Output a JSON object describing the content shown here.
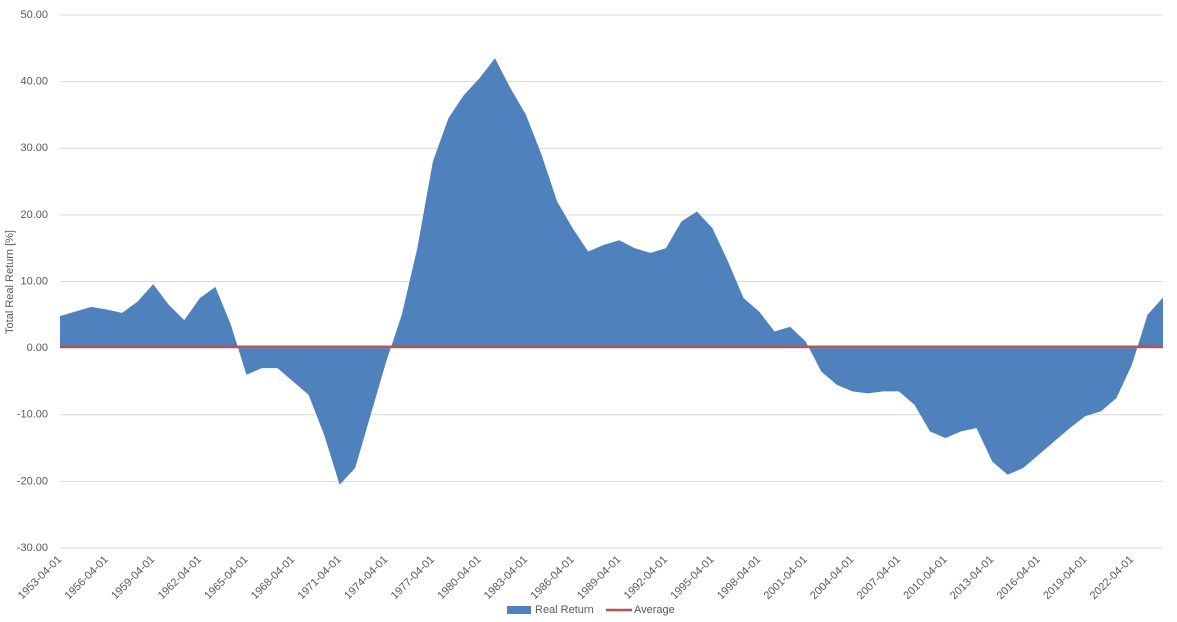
{
  "chart_data": {
    "type": "area",
    "y_label": "Total Real Return [%]",
    "x": [
      "1953-04-01",
      "1954-04-01",
      "1955-04-01",
      "1956-04-01",
      "1957-04-01",
      "1958-04-01",
      "1959-04-01",
      "1960-04-01",
      "1961-04-01",
      "1962-04-01",
      "1963-04-01",
      "1964-04-01",
      "1965-04-01",
      "1966-04-01",
      "1967-04-01",
      "1968-04-01",
      "1969-04-01",
      "1970-04-01",
      "1971-04-01",
      "1972-04-01",
      "1973-04-01",
      "1974-04-01",
      "1975-04-01",
      "1976-04-01",
      "1977-04-01",
      "1978-04-01",
      "1979-04-01",
      "1980-04-01",
      "1981-04-01",
      "1982-04-01",
      "1983-04-01",
      "1984-04-01",
      "1985-04-01",
      "1986-04-01",
      "1987-04-01",
      "1988-04-01",
      "1989-04-01",
      "1990-04-01",
      "1991-04-01",
      "1992-04-01",
      "1993-04-01",
      "1994-04-01",
      "1995-04-01",
      "1996-04-01",
      "1997-04-01",
      "1998-04-01",
      "1999-04-01",
      "2000-04-01",
      "2001-04-01",
      "2002-04-01",
      "2003-04-01",
      "2004-04-01",
      "2005-04-01",
      "2006-04-01",
      "2007-04-01",
      "2008-04-01",
      "2009-04-01",
      "2010-04-01",
      "2011-04-01",
      "2012-04-01",
      "2013-04-01",
      "2014-04-01",
      "2015-04-01",
      "2016-04-01",
      "2017-04-01",
      "2018-04-01",
      "2019-04-01",
      "2020-04-01",
      "2021-04-01",
      "2022-04-01",
      "2023-04-01",
      "2024-04-01"
    ],
    "series": [
      {
        "name": "Real Return",
        "color": "#4f81bd",
        "values": [
          4.8,
          5.5,
          6.2,
          5.8,
          5.3,
          7.0,
          9.6,
          6.5,
          4.2,
          7.5,
          9.2,
          3.5,
          -4.0,
          -3.0,
          -3.0,
          -5.0,
          -7.0,
          -13.0,
          -20.5,
          -18.0,
          -10.0,
          -2.0,
          5.0,
          15.0,
          28.0,
          34.5,
          38.0,
          40.5,
          43.5,
          39.0,
          35.0,
          29.0,
          22.0,
          18.0,
          14.5,
          15.5,
          16.2,
          15.0,
          14.3,
          15.0,
          19.0,
          20.5,
          18.0,
          13.0,
          7.5,
          5.5,
          2.5,
          3.2,
          1.0,
          -3.5,
          -5.5,
          -6.5,
          -6.8,
          -6.5,
          -6.5,
          -8.5,
          -12.5,
          -13.5,
          -12.5,
          -12.0,
          -17.0,
          -19.0,
          -18.0,
          -16.0,
          -14.0,
          -12.0,
          -10.2,
          -9.5,
          -7.5,
          -2.5,
          5.0,
          7.6
        ]
      },
      {
        "name": "Average",
        "color": "#c0504d",
        "value": 0.2
      }
    ],
    "xticks": [
      "1953-04-01",
      "1956-04-01",
      "1959-04-01",
      "1962-04-01",
      "1965-04-01",
      "1968-04-01",
      "1971-04-01",
      "1974-04-01",
      "1977-04-01",
      "1980-04-01",
      "1983-04-01",
      "1986-04-01",
      "1989-04-01",
      "1992-04-01",
      "1995-04-01",
      "1998-04-01",
      "2001-04-01",
      "2004-04-01",
      "2007-04-01",
      "2010-04-01",
      "2013-04-01",
      "2016-04-01",
      "2019-04-01",
      "2022-04-01"
    ],
    "ylim": [
      -30,
      50
    ],
    "yticks": [
      {
        "value": -30,
        "label": "-30.00"
      },
      {
        "value": -20,
        "label": "-20.00"
      },
      {
        "value": -10,
        "label": "-10.00"
      },
      {
        "value": 0,
        "label": "0.00"
      },
      {
        "value": 10,
        "label": "10.00"
      },
      {
        "value": 20,
        "label": "20.00"
      },
      {
        "value": 30,
        "label": "30.00"
      },
      {
        "value": 40,
        "label": "40.00"
      },
      {
        "value": 50,
        "label": "50.00"
      }
    ],
    "grid": true
  }
}
